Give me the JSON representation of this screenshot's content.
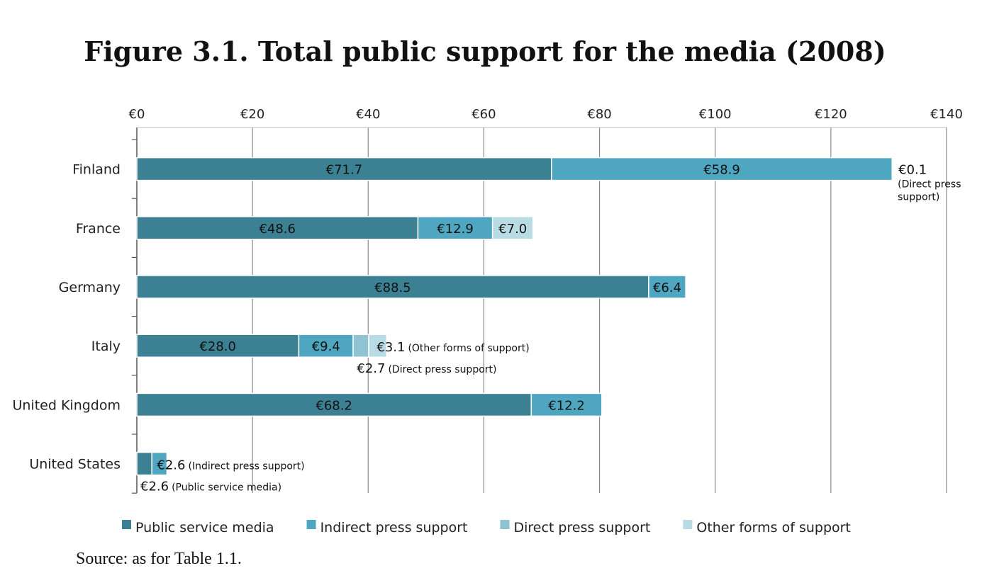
{
  "chart_data": {
    "type": "bar",
    "orientation": "horizontal",
    "stacked": true,
    "title": "Figure 3.1. Total public support for the media (2008)",
    "categories": [
      "Finland",
      "France",
      "Germany",
      "Italy",
      "United Kingdom",
      "United States"
    ],
    "series": [
      {
        "name": "Public service media",
        "color": "#3b8193",
        "values": [
          71.7,
          48.6,
          88.5,
          28.0,
          68.2,
          2.6
        ],
        "labels": [
          "€71.7",
          "€48.6",
          "€88.5",
          "€28.0",
          "€68.2",
          ""
        ]
      },
      {
        "name": "Indirect press support",
        "color": "#4ea6c0",
        "values": [
          58.9,
          12.9,
          6.4,
          9.4,
          12.2,
          2.6
        ],
        "labels": [
          "€58.9",
          "€12.9",
          "€6.4",
          "€9.4",
          "€12.2",
          ""
        ]
      },
      {
        "name": "Direct press support",
        "color": "#8fc3d2",
        "values": [
          0.1,
          0.0,
          0.0,
          2.7,
          0.0,
          0.0
        ],
        "labels": [
          "",
          "",
          "",
          "",
          "",
          ""
        ]
      },
      {
        "name": "Other forms of support",
        "color": "#b9dbe3",
        "values": [
          0.0,
          7.0,
          0.0,
          3.1,
          0.0,
          0.0
        ],
        "labels": [
          "",
          "€7.0",
          "",
          "",
          "",
          ""
        ]
      }
    ],
    "xlim": [
      0,
      140
    ],
    "x_ticks": [
      "€0",
      "€20",
      "€40",
      "€60",
      "€80",
      "€100",
      "€120",
      "€140"
    ],
    "grid": true,
    "legend_position": "bottom",
    "annotations": [
      {
        "category": "Finland",
        "value": "€0.1",
        "note": "(Direct press support)",
        "note_lines": [
          "(Direct press",
          "support)"
        ]
      },
      {
        "category": "Italy",
        "value": "€3.1",
        "note": "(Other forms of support)"
      },
      {
        "category": "Italy",
        "value": "€2.7",
        "note": "(Direct press support)"
      },
      {
        "category": "United States",
        "value": "€2.6",
        "note": "(Indirect press support)"
      },
      {
        "category": "United States",
        "value": "€2.6",
        "note": "(Public service media)"
      }
    ]
  },
  "source": "Source: as for Table 1.1."
}
